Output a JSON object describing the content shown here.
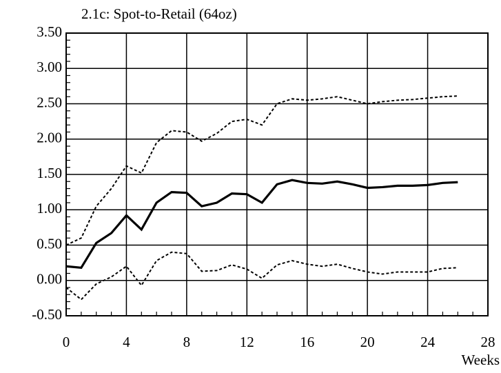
{
  "chart_data": {
    "type": "line",
    "title": "2.1c: Spot-to-Retail (64oz)",
    "x_label": "Weeks",
    "x": [
      0,
      1,
      2,
      3,
      4,
      5,
      6,
      7,
      8,
      9,
      10,
      11,
      12,
      13,
      14,
      15,
      16,
      17,
      18,
      19,
      20,
      21,
      22,
      23,
      24,
      25,
      26
    ],
    "series": [
      {
        "color": "#000000",
        "style": "solid",
        "values": [
          0.2,
          0.18,
          0.53,
          0.67,
          0.92,
          0.72,
          1.1,
          1.25,
          1.24,
          1.05,
          1.1,
          1.23,
          1.22,
          1.1,
          1.36,
          1.42,
          1.38,
          1.37,
          1.4,
          1.36,
          1.31,
          1.32,
          1.34,
          1.34,
          1.35,
          1.38,
          1.39
        ]
      },
      {
        "color": "#000000",
        "style": "dotted",
        "values": [
          0.5,
          0.6,
          1.05,
          1.3,
          1.62,
          1.52,
          1.95,
          2.12,
          2.1,
          1.97,
          2.08,
          2.25,
          2.28,
          2.2,
          2.5,
          2.57,
          2.55,
          2.57,
          2.6,
          2.55,
          2.5,
          2.53,
          2.55,
          2.56,
          2.58,
          2.6,
          2.61
        ]
      },
      {
        "color": "#000000",
        "style": "dotted",
        "values": [
          -0.1,
          -0.27,
          -0.05,
          0.05,
          0.2,
          -0.07,
          0.28,
          0.4,
          0.38,
          0.13,
          0.14,
          0.22,
          0.16,
          0.03,
          0.22,
          0.28,
          0.23,
          0.2,
          0.23,
          0.17,
          0.12,
          0.09,
          0.12,
          0.12,
          0.12,
          0.17,
          0.18
        ]
      }
    ],
    "xlim": [
      0,
      28
    ],
    "xticks": [
      0,
      4,
      8,
      12,
      16,
      20,
      24,
      28
    ],
    "ylim": [
      -0.5,
      3.5
    ],
    "yticks": [
      {
        "value": -0.5,
        "label": "-0.50"
      },
      {
        "value": 0,
        "label": "0.00"
      },
      {
        "value": 0.5,
        "label": "0.50"
      },
      {
        "value": 1,
        "label": "1.00"
      },
      {
        "value": 1.5,
        "label": "1.50"
      },
      {
        "value": 2,
        "label": "2.00"
      },
      {
        "value": 2.5,
        "label": "2.50"
      },
      {
        "value": 3,
        "label": "3.00"
      },
      {
        "value": 3.5,
        "label": "3.50"
      }
    ],
    "grid": true
  }
}
